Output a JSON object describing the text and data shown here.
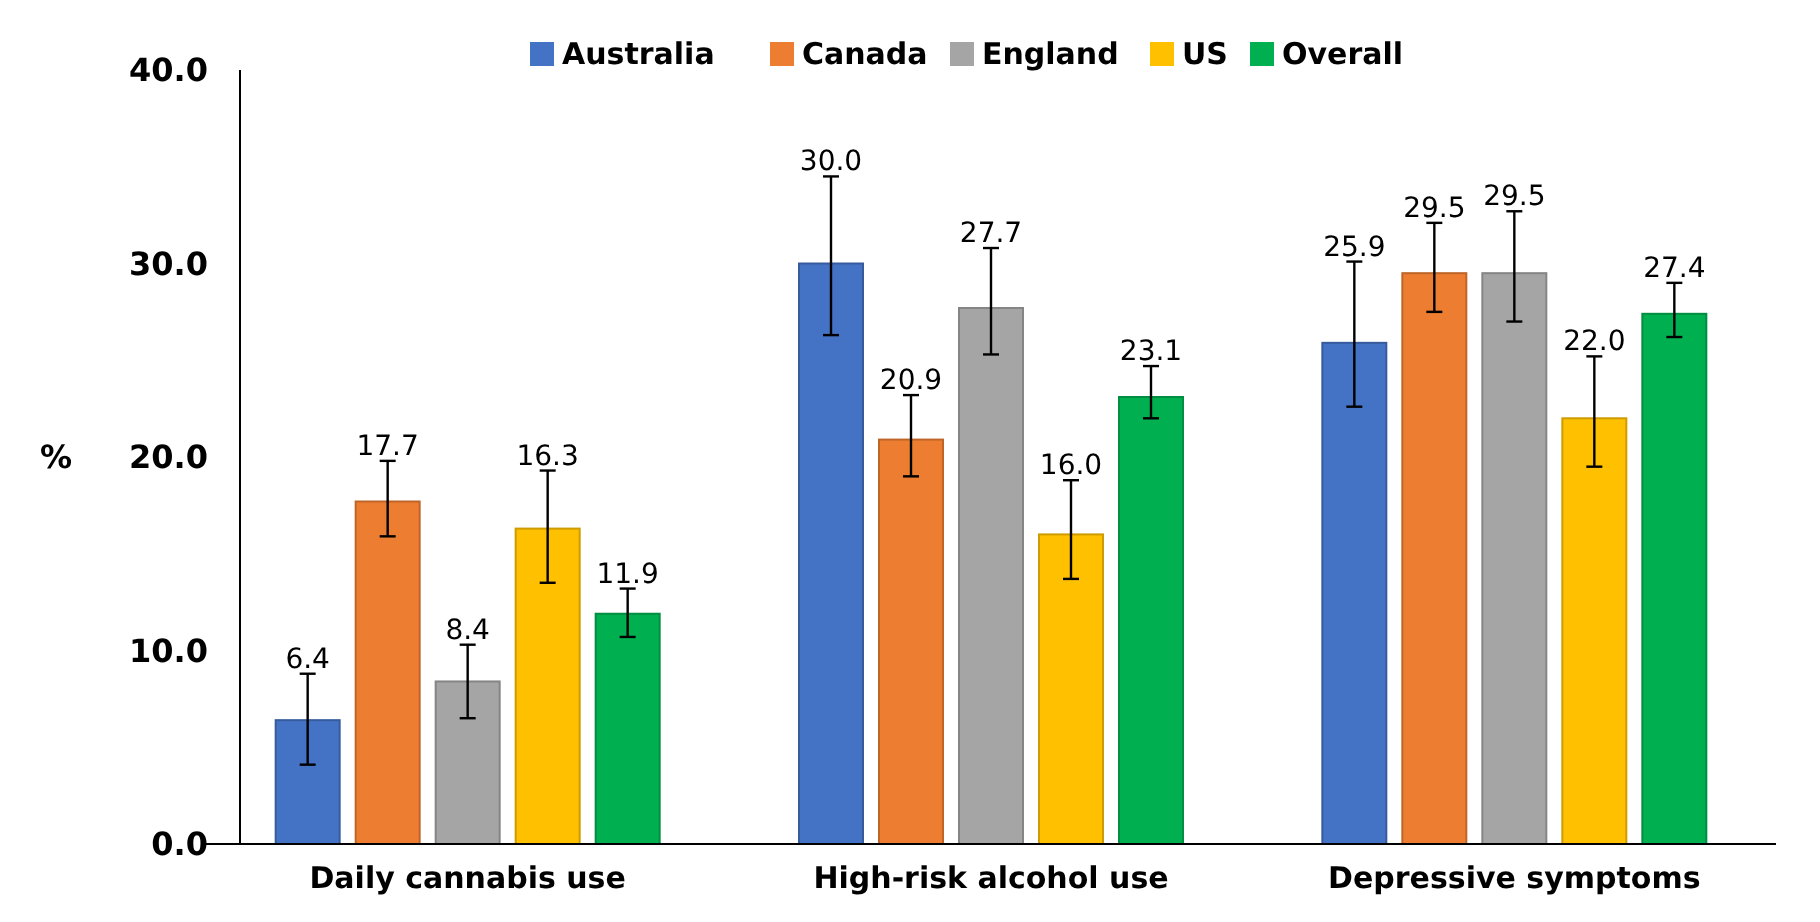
{
  "chart_data": {
    "type": "bar",
    "ylabel": "%",
    "categories": [
      "Daily cannabis use",
      "High-risk alcohol use",
      "Depressive symptoms"
    ],
    "series": [
      {
        "name": "Australia",
        "color": "#4472c4",
        "values": [
          6.4,
          30.0,
          25.9
        ],
        "value_labels": [
          "6.4",
          "30.0",
          "25.9"
        ],
        "errors": [
          [
            4.1,
            8.8
          ],
          [
            26.3,
            34.5
          ],
          [
            22.6,
            30.1
          ]
        ]
      },
      {
        "name": "Canada",
        "color": "#ed7d31",
        "values": [
          17.7,
          20.9,
          29.5
        ],
        "value_labels": [
          "17.7",
          "20.9",
          "29.5"
        ],
        "errors": [
          [
            15.9,
            19.8
          ],
          [
            19.0,
            23.2
          ],
          [
            27.5,
            32.1
          ]
        ]
      },
      {
        "name": "England",
        "color": "#a5a5a5",
        "values": [
          8.4,
          27.7,
          29.5
        ],
        "value_labels": [
          "8.4",
          "27.7",
          "29.5"
        ],
        "errors": [
          [
            6.5,
            10.3
          ],
          [
            25.3,
            30.8
          ],
          [
            27.0,
            32.7
          ]
        ]
      },
      {
        "name": "US",
        "color": "#ffc000",
        "values": [
          16.3,
          16.0,
          22.0
        ],
        "value_labels": [
          "16.3",
          "16.0",
          "22.0"
        ],
        "errors": [
          [
            13.5,
            19.3
          ],
          [
            13.7,
            18.8
          ],
          [
            19.5,
            25.2
          ]
        ]
      },
      {
        "name": "Overall",
        "color": "#00b050",
        "values": [
          11.9,
          23.1,
          27.4
        ],
        "value_labels": [
          "11.9",
          "23.1",
          "27.4"
        ],
        "errors": [
          [
            10.7,
            13.2
          ],
          [
            22.0,
            24.7
          ],
          [
            26.2,
            29.0
          ]
        ]
      }
    ],
    "ylim": [
      0,
      40
    ],
    "yticks": [
      {
        "value": 0,
        "label": "0.0"
      },
      {
        "value": 10,
        "label": "10.0"
      },
      {
        "value": 20,
        "label": "20.0"
      },
      {
        "value": 30,
        "label": "30.0"
      },
      {
        "value": 40,
        "label": "40.0"
      }
    ],
    "grid": false,
    "legend": "top"
  }
}
